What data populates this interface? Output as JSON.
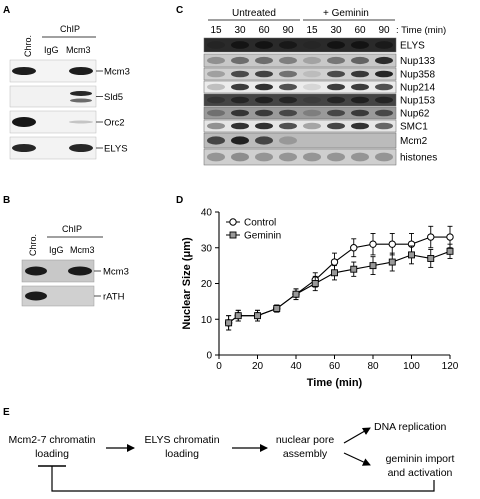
{
  "panels": {
    "A": {
      "letter": "A",
      "col_chro": "Chro.",
      "col_igg": "IgG",
      "col_mcm3": "Mcm3",
      "chip": "ChIP",
      "rows": [
        {
          "label": "Mcm3",
          "bg": "#f4f4f4"
        },
        {
          "label": "Sld5",
          "bg": "#f2f2f2"
        },
        {
          "label": "Orc2",
          "bg": "#f3f3f3"
        },
        {
          "label": "ELYS",
          "bg": "#f3f3f3"
        }
      ]
    },
    "B": {
      "letter": "B",
      "col_chro": "Chro.",
      "col_igg": "IgG",
      "col_mcm3": "Mcm3",
      "chip": "ChIP",
      "rows": [
        {
          "label": "Mcm3",
          "bg": "#c8c8c8"
        },
        {
          "label": "rATH",
          "bg": "#d0d0d0"
        }
      ]
    },
    "C": {
      "letter": "C",
      "group_untreated": "Untreated",
      "group_geminin": "+ Geminin",
      "time_label": ": Time (min)",
      "times": [
        "15",
        "30",
        "60",
        "90",
        "15",
        "30",
        "60",
        "90"
      ],
      "rows": [
        "ELYS",
        "Nup133",
        "Nup358",
        "Nup214",
        "Nup153",
        "Nup62",
        "SMC1",
        "Mcm2",
        "histones"
      ]
    },
    "D": {
      "letter": "D"
    },
    "E": {
      "letter": "E",
      "box1_line1": "Mcm2-7 chromatin",
      "box1_line2": "loading",
      "box2_line1": "ELYS chromatin",
      "box2_line2": "loading",
      "box3_line1": "nuclear pore",
      "box3_line2": "assembly",
      "out1": "DNA replication",
      "out2_line1": "geminin import",
      "out2_line2": "and activation"
    }
  },
  "chart_data": {
    "type": "line",
    "xlabel": "Time (min)",
    "ylabel": "Nuclear Size (μm)",
    "xlim": [
      0,
      120
    ],
    "ylim": [
      0,
      40
    ],
    "xticks": [
      0,
      20,
      40,
      60,
      80,
      100,
      120
    ],
    "yticks": [
      0,
      10,
      20,
      30,
      40
    ],
    "legend_position": "top-left",
    "grid": false,
    "series": [
      {
        "name": "Control",
        "marker": "open-circle",
        "x": [
          5,
          10,
          20,
          30,
          40,
          50,
          60,
          70,
          80,
          90,
          100,
          110,
          120
        ],
        "y": [
          9,
          11,
          11,
          13,
          17,
          21,
          26,
          30,
          31,
          31,
          31,
          33,
          33
        ],
        "err": [
          2,
          1.5,
          1.5,
          1,
          1.5,
          2,
          2.5,
          2.5,
          3,
          3,
          3,
          3,
          3
        ]
      },
      {
        "name": "Geminin",
        "marker": "grey-square",
        "x": [
          5,
          10,
          20,
          30,
          40,
          50,
          60,
          70,
          80,
          90,
          100,
          110,
          120
        ],
        "y": [
          9,
          11,
          11,
          13,
          17,
          20,
          23,
          24,
          25,
          26,
          28,
          27,
          29
        ],
        "err": [
          2,
          1.5,
          1.5,
          1,
          1.5,
          2,
          2,
          2,
          2.5,
          2.5,
          2.5,
          2.5,
          2
        ]
      }
    ]
  }
}
